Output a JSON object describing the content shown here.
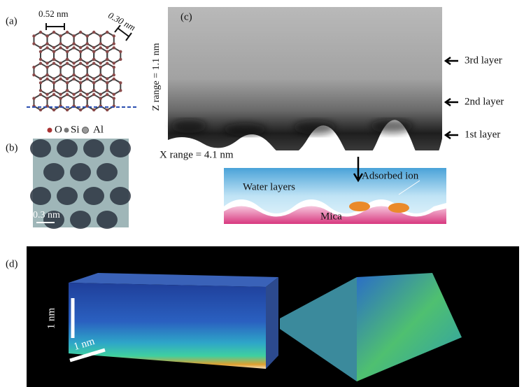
{
  "panels": {
    "a": {
      "label": "(a)",
      "scale_1": "0.52 nm",
      "scale_2": "0.30 nm",
      "legend": [
        "O",
        "Si",
        "Al"
      ]
    },
    "b": {
      "label": "(b)",
      "scale": "0.3 nm"
    },
    "c": {
      "label": "(c)",
      "z_range": "Z range = 1.1 nm",
      "x_range": "X range = 4.1 nm",
      "layers": [
        "3rd layer",
        "2nd layer",
        "1st layer"
      ],
      "schematic": {
        "adsorbed": "Adsorbed ion",
        "water": "Water layers",
        "mica": "Mica"
      }
    },
    "d": {
      "label": "(d)",
      "scale_vertical": "1 nm",
      "scale_horizontal": "1 nm"
    }
  }
}
